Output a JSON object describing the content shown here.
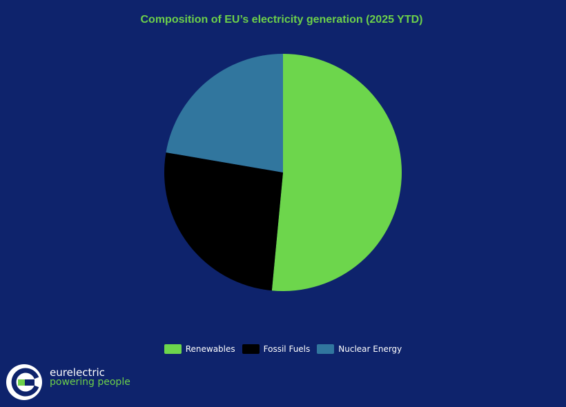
{
  "chart_data": {
    "type": "pie",
    "title": "Composition of EU’s electricity generation (2025 YTD)",
    "categories": [
      "Renewables",
      "Fossil Fuels",
      "Nuclear Energy"
    ],
    "values": [
      51.5,
      26.2,
      22.3
    ],
    "colors": [
      "#6dd64c",
      "#000000",
      "#31769e"
    ],
    "start_angle": "12 o'clock, clockwise",
    "legend_position": "bottom-center"
  },
  "logo": {
    "name": "eurelectric",
    "tagline": "powering people",
    "accent": "#6dd04a"
  },
  "colors": {
    "background": "#0e236c",
    "title": "#6dd04a"
  }
}
